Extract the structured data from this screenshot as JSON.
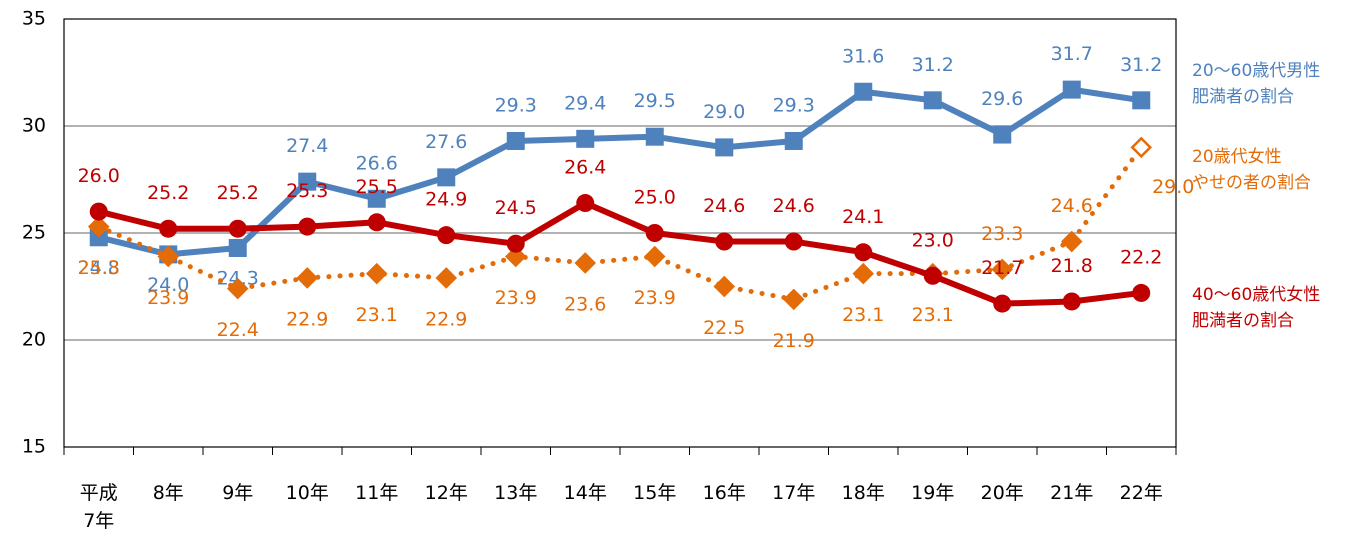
{
  "chart_data": {
    "type": "line",
    "categories": [
      "平成\n7年",
      "8年",
      "9年",
      "10年",
      "11年",
      "12年",
      "13年",
      "14年",
      "15年",
      "16年",
      "17年",
      "18年",
      "19年",
      "20年",
      "21年",
      "22年"
    ],
    "ylim": [
      15,
      35
    ],
    "yticks": [
      15,
      20,
      25,
      30,
      35
    ],
    "grid": true,
    "series": [
      {
        "name": "20〜60歳代男性\n肥満者の割合",
        "color": "#4f81bd",
        "marker": "square",
        "line": "solid",
        "values": [
          24.8,
          24.0,
          24.3,
          27.4,
          26.6,
          27.6,
          29.3,
          29.4,
          29.5,
          29.0,
          29.3,
          31.6,
          31.2,
          29.6,
          31.7,
          31.2
        ],
        "value_labels": [
          "24.8",
          "24.0",
          "24.3",
          "27.4",
          "26.6",
          "27.6",
          "29.3",
          "29.4",
          "29.5",
          "29.0",
          "29.3",
          "31.6",
          "31.2",
          "29.6",
          "31.7",
          "31.2"
        ]
      },
      {
        "name": "20歳代女性\nやせの者の割合",
        "color": "#e36c09",
        "marker": "diamond",
        "line": "dotted",
        "hollow_last": true,
        "values": [
          25.3,
          23.9,
          22.4,
          22.9,
          23.1,
          22.9,
          23.9,
          23.6,
          23.9,
          22.5,
          21.9,
          23.1,
          23.1,
          23.3,
          24.6,
          29.0
        ],
        "value_labels": [
          "25.3",
          "23.9",
          "22.4",
          "22.9",
          "23.1",
          "22.9",
          "23.9",
          "23.6",
          "23.9",
          "22.5",
          "21.9",
          "23.1",
          "23.1",
          "23.3",
          "24.6",
          "29.0"
        ]
      },
      {
        "name": "40〜60歳代女性\n肥満者の割合",
        "color": "#c00000",
        "marker": "circle",
        "line": "solid",
        "values": [
          26.0,
          25.2,
          25.2,
          25.3,
          25.5,
          24.9,
          24.5,
          26.4,
          25.0,
          24.6,
          24.6,
          24.1,
          23.0,
          21.7,
          21.8,
          22.2
        ],
        "value_labels": [
          "26.0",
          "25.2",
          "25.2",
          "25.3",
          "25.5",
          "24.9",
          "24.5",
          "26.4",
          "25.0",
          "24.6",
          "24.6",
          "24.1",
          "23.0",
          "21.7",
          "21.8",
          "22.2"
        ]
      }
    ]
  }
}
